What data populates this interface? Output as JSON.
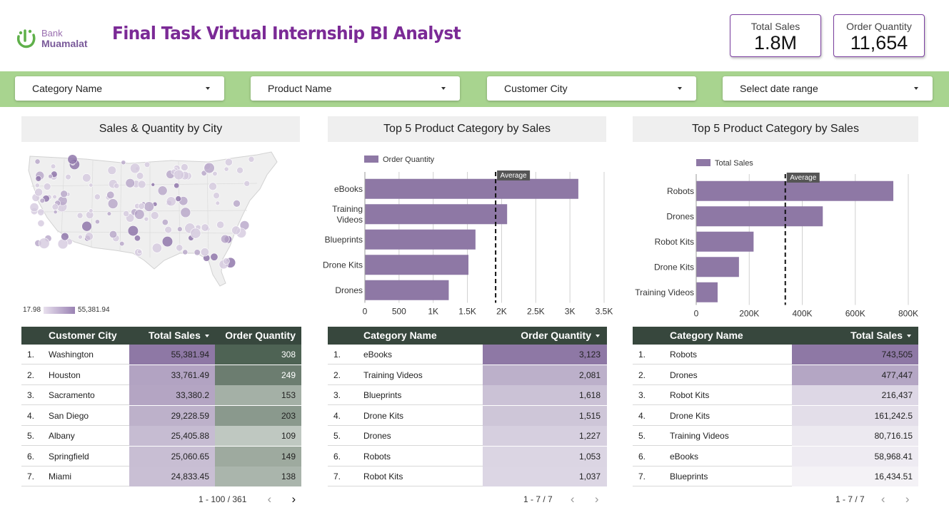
{
  "logo": {
    "line1": "Bank",
    "line2": "Muamalat"
  },
  "title": "Final Task Virtual Internship BI Analyst",
  "kpis": [
    {
      "label": "Total Sales",
      "value": "1.8M"
    },
    {
      "label": "Order Quantity",
      "value": "11,654"
    }
  ],
  "filters": [
    "Category Name",
    "Product Name",
    "Customer City",
    "Select date range"
  ],
  "map_section": {
    "title": "Sales & Quantity by City",
    "scale_min": "17.98",
    "scale_max": "55,381.94"
  },
  "chart_data": [
    {
      "type": "bar",
      "orientation": "horizontal",
      "title": "Top 5 Product Category by Sales",
      "legend": "Order Quantity",
      "categories": [
        "eBooks",
        "Training Videos",
        "Blueprints",
        "Drone Kits",
        "Drones"
      ],
      "category_lines": [
        [
          "eBooks"
        ],
        [
          "Training",
          "Videos"
        ],
        [
          "Blueprints"
        ],
        [
          "Drone Kits"
        ],
        [
          "Drones"
        ]
      ],
      "values": [
        3123,
        2081,
        1618,
        1515,
        1227
      ],
      "average": 1913,
      "average_label": "Average",
      "xlim": [
        0,
        3500
      ],
      "ticks": [
        0,
        500,
        1000,
        1500,
        2000,
        2500,
        3000,
        3500
      ],
      "tick_labels": [
        "0",
        "500",
        "1K",
        "1.5K",
        "2K",
        "2.5K",
        "3K",
        "3.5K"
      ],
      "color": "#8e78a5"
    },
    {
      "type": "bar",
      "orientation": "horizontal",
      "title": "Top 5 Product Category by Sales",
      "legend": "Total Sales",
      "categories": [
        "Robots",
        "Drones",
        "Robot Kits",
        "Drone Kits",
        "Training Videos"
      ],
      "category_lines": [
        [
          "Robots"
        ],
        [
          "Drones"
        ],
        [
          "Robot Kits"
        ],
        [
          "Drone Kits"
        ],
        [
          "Training Videos"
        ]
      ],
      "values": [
        743505,
        477447,
        216437,
        161242.5,
        80716.15
      ],
      "average": 336000,
      "average_label": "Average",
      "xlim": [
        0,
        800000
      ],
      "ticks": [
        0,
        200000,
        400000,
        600000,
        800000
      ],
      "tick_labels": [
        "0",
        "200K",
        "400K",
        "600K",
        "800K"
      ],
      "color": "#8e78a5"
    }
  ],
  "tables": [
    {
      "headers": [
        "Customer City",
        "Total Sales",
        "Order Quantity"
      ],
      "rows": [
        [
          "1.",
          "Washington",
          "55,381.94",
          "308"
        ],
        [
          "2.",
          "Houston",
          "33,761.49",
          "249"
        ],
        [
          "3.",
          "Sacramento",
          "33,380.2",
          "153"
        ],
        [
          "4.",
          "San Diego",
          "29,228.59",
          "203"
        ],
        [
          "5.",
          "Albany",
          "25,405.88",
          "109"
        ],
        [
          "6.",
          "Springfield",
          "25,060.65",
          "149"
        ],
        [
          "7.",
          "Miami",
          "24,833.45",
          "138"
        ]
      ],
      "pager": "1 - 100 / 361"
    },
    {
      "headers": [
        "Category Name",
        "Order Quantity"
      ],
      "rows": [
        [
          "1.",
          "eBooks",
          "3,123"
        ],
        [
          "2.",
          "Training Videos",
          "2,081"
        ],
        [
          "3.",
          "Blueprints",
          "1,618"
        ],
        [
          "4.",
          "Drone Kits",
          "1,515"
        ],
        [
          "5.",
          "Drones",
          "1,227"
        ],
        [
          "6.",
          "Robots",
          "1,053"
        ],
        [
          "7.",
          "Robot Kits",
          "1,037"
        ]
      ],
      "pager": "1 - 7 / 7"
    },
    {
      "headers": [
        "Category Name",
        "Total Sales"
      ],
      "rows": [
        [
          "1.",
          "Robots",
          "743,505"
        ],
        [
          "2.",
          "Drones",
          "477,447"
        ],
        [
          "3.",
          "Robot Kits",
          "216,437"
        ],
        [
          "4.",
          "Drone Kits",
          "161,242.5"
        ],
        [
          "5.",
          "Training Videos",
          "80,716.15"
        ],
        [
          "6.",
          "eBooks",
          "58,968.41"
        ],
        [
          "7.",
          "Blueprints",
          "16,434.51"
        ]
      ],
      "pager": "1 - 7 / 7"
    }
  ],
  "colors": {
    "accent": "#7b2a96",
    "filterbar": "#a8d48f",
    "table_header": "#37473d",
    "bar": "#8e78a5"
  }
}
